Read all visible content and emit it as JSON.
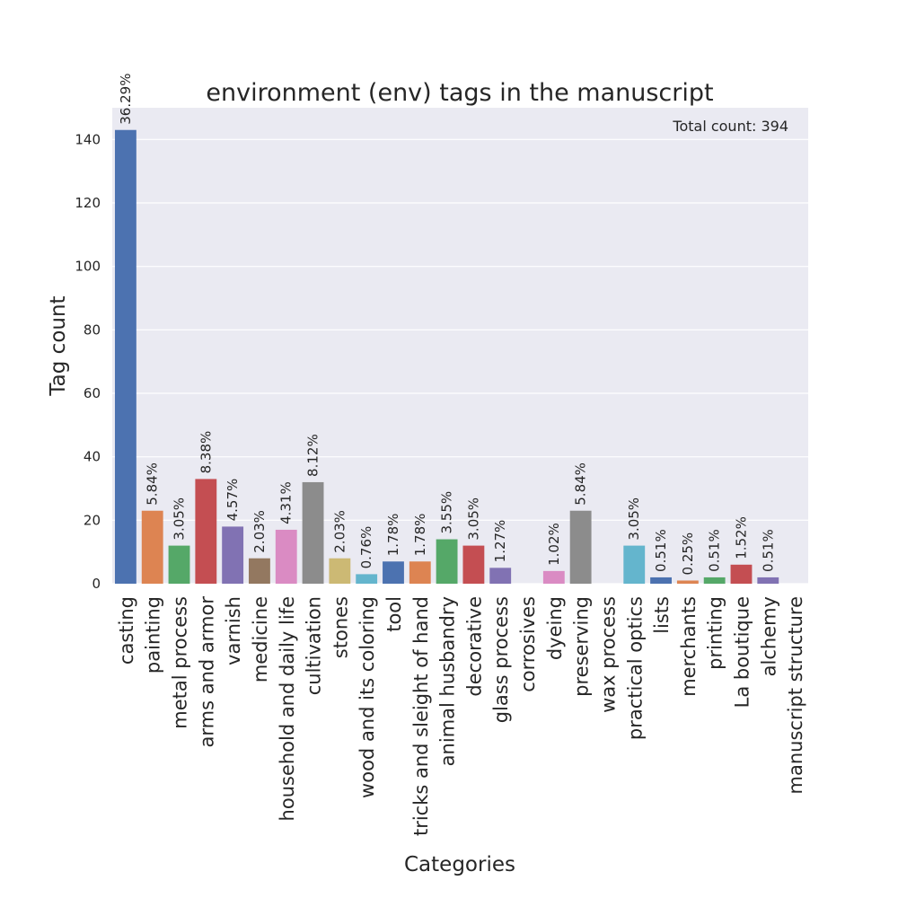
{
  "chart_data": {
    "type": "bar",
    "title": "environment (env) tags in the manuscript",
    "xlabel": "Categories",
    "ylabel": "Tag count",
    "annotation": "Total count: 394",
    "ylim": [
      0,
      150
    ],
    "yticks": [
      0,
      20,
      40,
      60,
      80,
      100,
      120,
      140
    ],
    "grid": true,
    "categories": [
      "casting",
      "painting",
      "metal process",
      "arms and armor",
      "varnish",
      "medicine",
      "household and daily life",
      "cultivation",
      "stones",
      "wood and its coloring",
      "tool",
      "tricks and sleight of hand",
      "animal husbandry",
      "decorative",
      "glass process",
      "corrosives",
      "dyeing",
      "preserving",
      "wax process",
      "practical optics",
      "lists",
      "merchants",
      "printing",
      "La boutique",
      "alchemy",
      "manuscript structure"
    ],
    "values": [
      143,
      23,
      12,
      33,
      18,
      8,
      17,
      32,
      8,
      3,
      7,
      7,
      14,
      12,
      5,
      0,
      4,
      23,
      0,
      12,
      2,
      1,
      2,
      6,
      2,
      0
    ],
    "percent_labels": [
      "36.29%",
      "5.84%",
      "3.05%",
      "8.38%",
      "4.57%",
      "2.03%",
      "4.31%",
      "8.12%",
      "2.03%",
      "0.76%",
      "1.78%",
      "1.78%",
      "3.55%",
      "3.05%",
      "1.27%",
      "",
      "1.02%",
      "5.84%",
      "",
      "3.05%",
      "0.51%",
      "0.25%",
      "0.51%",
      "1.52%",
      "0.51%",
      ""
    ],
    "palette": [
      "#4c72b0",
      "#dd8452",
      "#55a868",
      "#c44e52",
      "#8172b3",
      "#937860",
      "#da8bc3",
      "#8c8c8c",
      "#ccb974",
      "#64b5cd"
    ],
    "background": "#eaeaf2",
    "gridline_color": "#ffffff"
  }
}
